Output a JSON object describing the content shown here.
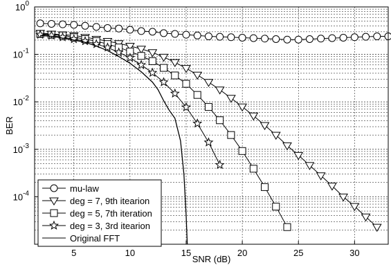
{
  "chart_data": {
    "type": "line",
    "title": "",
    "xlabel": "SNR (dB)",
    "ylabel": "BER",
    "xlim": [
      1.5,
      33
    ],
    "ylim": [
      1e-05,
      1
    ],
    "yscale": "log",
    "grid": true,
    "legend_position": "bottom-left",
    "x_ticks": [
      "5",
      "10",
      "15",
      "20",
      "25",
      "30"
    ],
    "y_ticks": [
      {
        "base": "10",
        "exp": "0"
      },
      {
        "base": "10",
        "exp": "-1"
      },
      {
        "base": "10",
        "exp": "-2"
      },
      {
        "base": "10",
        "exp": "-3"
      },
      {
        "base": "10",
        "exp": "-4"
      }
    ],
    "series": [
      {
        "name": "mu-law",
        "marker": "circle",
        "x": [
          2,
          3,
          4,
          5,
          6,
          7,
          8,
          9,
          10,
          11,
          12,
          13,
          14,
          15,
          16,
          17,
          18,
          19,
          20,
          21,
          22,
          23,
          24,
          25,
          26,
          27,
          28,
          29,
          30,
          31,
          32,
          33
        ],
        "y": [
          0.45,
          0.44,
          0.43,
          0.42,
          0.4,
          0.38,
          0.36,
          0.35,
          0.33,
          0.31,
          0.3,
          0.28,
          0.27,
          0.26,
          0.25,
          0.24,
          0.235,
          0.23,
          0.225,
          0.22,
          0.215,
          0.21,
          0.205,
          0.205,
          0.21,
          0.215,
          0.22,
          0.225,
          0.23,
          0.235,
          0.24,
          0.24
        ]
      },
      {
        "name": "deg = 7, 9th itearion",
        "marker": "triangle-down",
        "x": [
          2,
          3,
          4,
          5,
          6,
          7,
          8,
          9,
          10,
          11,
          12,
          13,
          14,
          15,
          16,
          17,
          18,
          19,
          20,
          21,
          22,
          23,
          24,
          25,
          26,
          27,
          28,
          29,
          30,
          31,
          32
        ],
        "y": [
          0.28,
          0.27,
          0.26,
          0.25,
          0.23,
          0.21,
          0.19,
          0.17,
          0.15,
          0.13,
          0.11,
          0.088,
          0.068,
          0.051,
          0.037,
          0.026,
          0.018,
          0.012,
          0.0079,
          0.0051,
          0.0032,
          0.002,
          0.0012,
          0.00075,
          0.00046,
          0.00028,
          0.00017,
          0.0001,
          6.3e-05,
          3.8e-05,
          2.3e-05
        ]
      },
      {
        "name": "deg = 5, 7th iteration",
        "marker": "square",
        "x": [
          2,
          3,
          4,
          5,
          6,
          7,
          8,
          9,
          10,
          11,
          12,
          13,
          14,
          15,
          16,
          17,
          18,
          19,
          20,
          21,
          22,
          23,
          24
        ],
        "y": [
          0.27,
          0.26,
          0.25,
          0.23,
          0.21,
          0.19,
          0.165,
          0.14,
          0.115,
          0.093,
          0.072,
          0.052,
          0.036,
          0.024,
          0.014,
          0.0078,
          0.0041,
          0.002,
          0.00092,
          0.00039,
          0.00016,
          6.2e-05,
          2.3e-05
        ]
      },
      {
        "name": "deg = 3, 3rd itearion",
        "marker": "star",
        "x": [
          2,
          3,
          4,
          5,
          6,
          7,
          8,
          9,
          10,
          11,
          12,
          13,
          14,
          15,
          16,
          17,
          18
        ],
        "y": [
          0.26,
          0.25,
          0.23,
          0.21,
          0.19,
          0.165,
          0.14,
          0.11,
          0.085,
          0.06,
          0.041,
          0.026,
          0.015,
          0.0077,
          0.0035,
          0.0014,
          0.00047
        ]
      },
      {
        "name": "Original FFT",
        "marker": "none",
        "x": [
          2,
          3,
          4,
          5,
          6,
          7,
          8,
          9,
          10,
          11,
          12,
          12.5,
          13,
          13.5,
          14,
          14.5,
          14.8,
          15,
          15.1
        ],
        "y": [
          0.25,
          0.24,
          0.22,
          0.2,
          0.18,
          0.15,
          0.12,
          0.09,
          0.065,
          0.043,
          0.026,
          0.018,
          0.0105,
          0.0066,
          0.0045,
          0.0015,
          0.0003,
          4e-05,
          1e-05
        ]
      }
    ]
  }
}
